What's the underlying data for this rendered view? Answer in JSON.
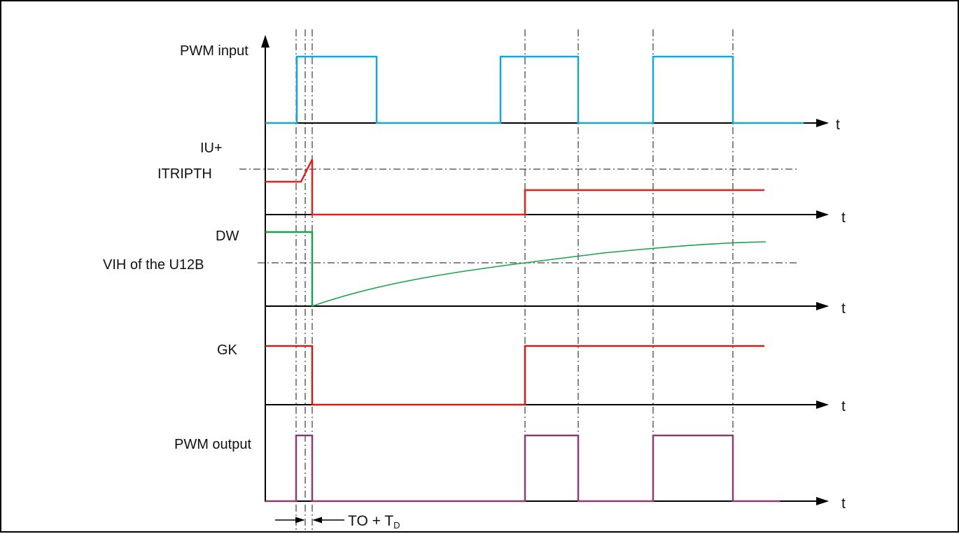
{
  "diagram": {
    "labels": {
      "pwm_input": "PWM input",
      "iu_plus": "IU+",
      "itripth": "ITRIPTH",
      "dw": "DW",
      "vih": "VIH of the U12B",
      "gk": "GK",
      "pwm_output": "PWM output",
      "t": "t",
      "timing_main": "TO + T",
      "timing_sub": "D"
    },
    "colors": {
      "pwm_input": "#16A5D6",
      "iu_plus": "#E3211F",
      "dw": "#16A34A",
      "gk": "#D11B1B",
      "pwm_output": "#8A3D73",
      "axes": "#000000"
    }
  }
}
